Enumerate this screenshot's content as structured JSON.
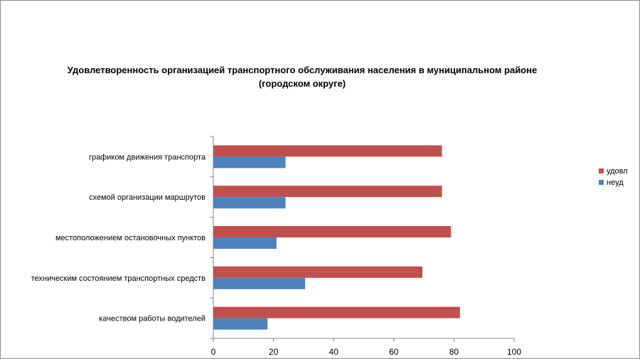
{
  "chart_data": {
    "type": "bar",
    "orientation": "horizontal",
    "title_lines": [
      "Удовлетворенность организацией транспортного обслуживания населения в муниципальном районе",
      "(городском округе)"
    ],
    "categories": [
      "графиком движения транспорта",
      "схемой организации маршрутов",
      "местоположением остановочных пунктов",
      "техническим состоянием транспортных средств",
      "качеством работы водителей"
    ],
    "series": [
      {
        "name": "удовл",
        "color": "#c0504d",
        "values": [
          76,
          76,
          79,
          69.5,
          82
        ]
      },
      {
        "name": "неуд",
        "color": "#4f81bd",
        "values": [
          24,
          24,
          21,
          30.5,
          18
        ]
      }
    ],
    "xlim": [
      0,
      100
    ],
    "xticks": [
      "0",
      "20",
      "40",
      "60",
      "80",
      "100"
    ],
    "grid": false,
    "legend_position": "right"
  }
}
